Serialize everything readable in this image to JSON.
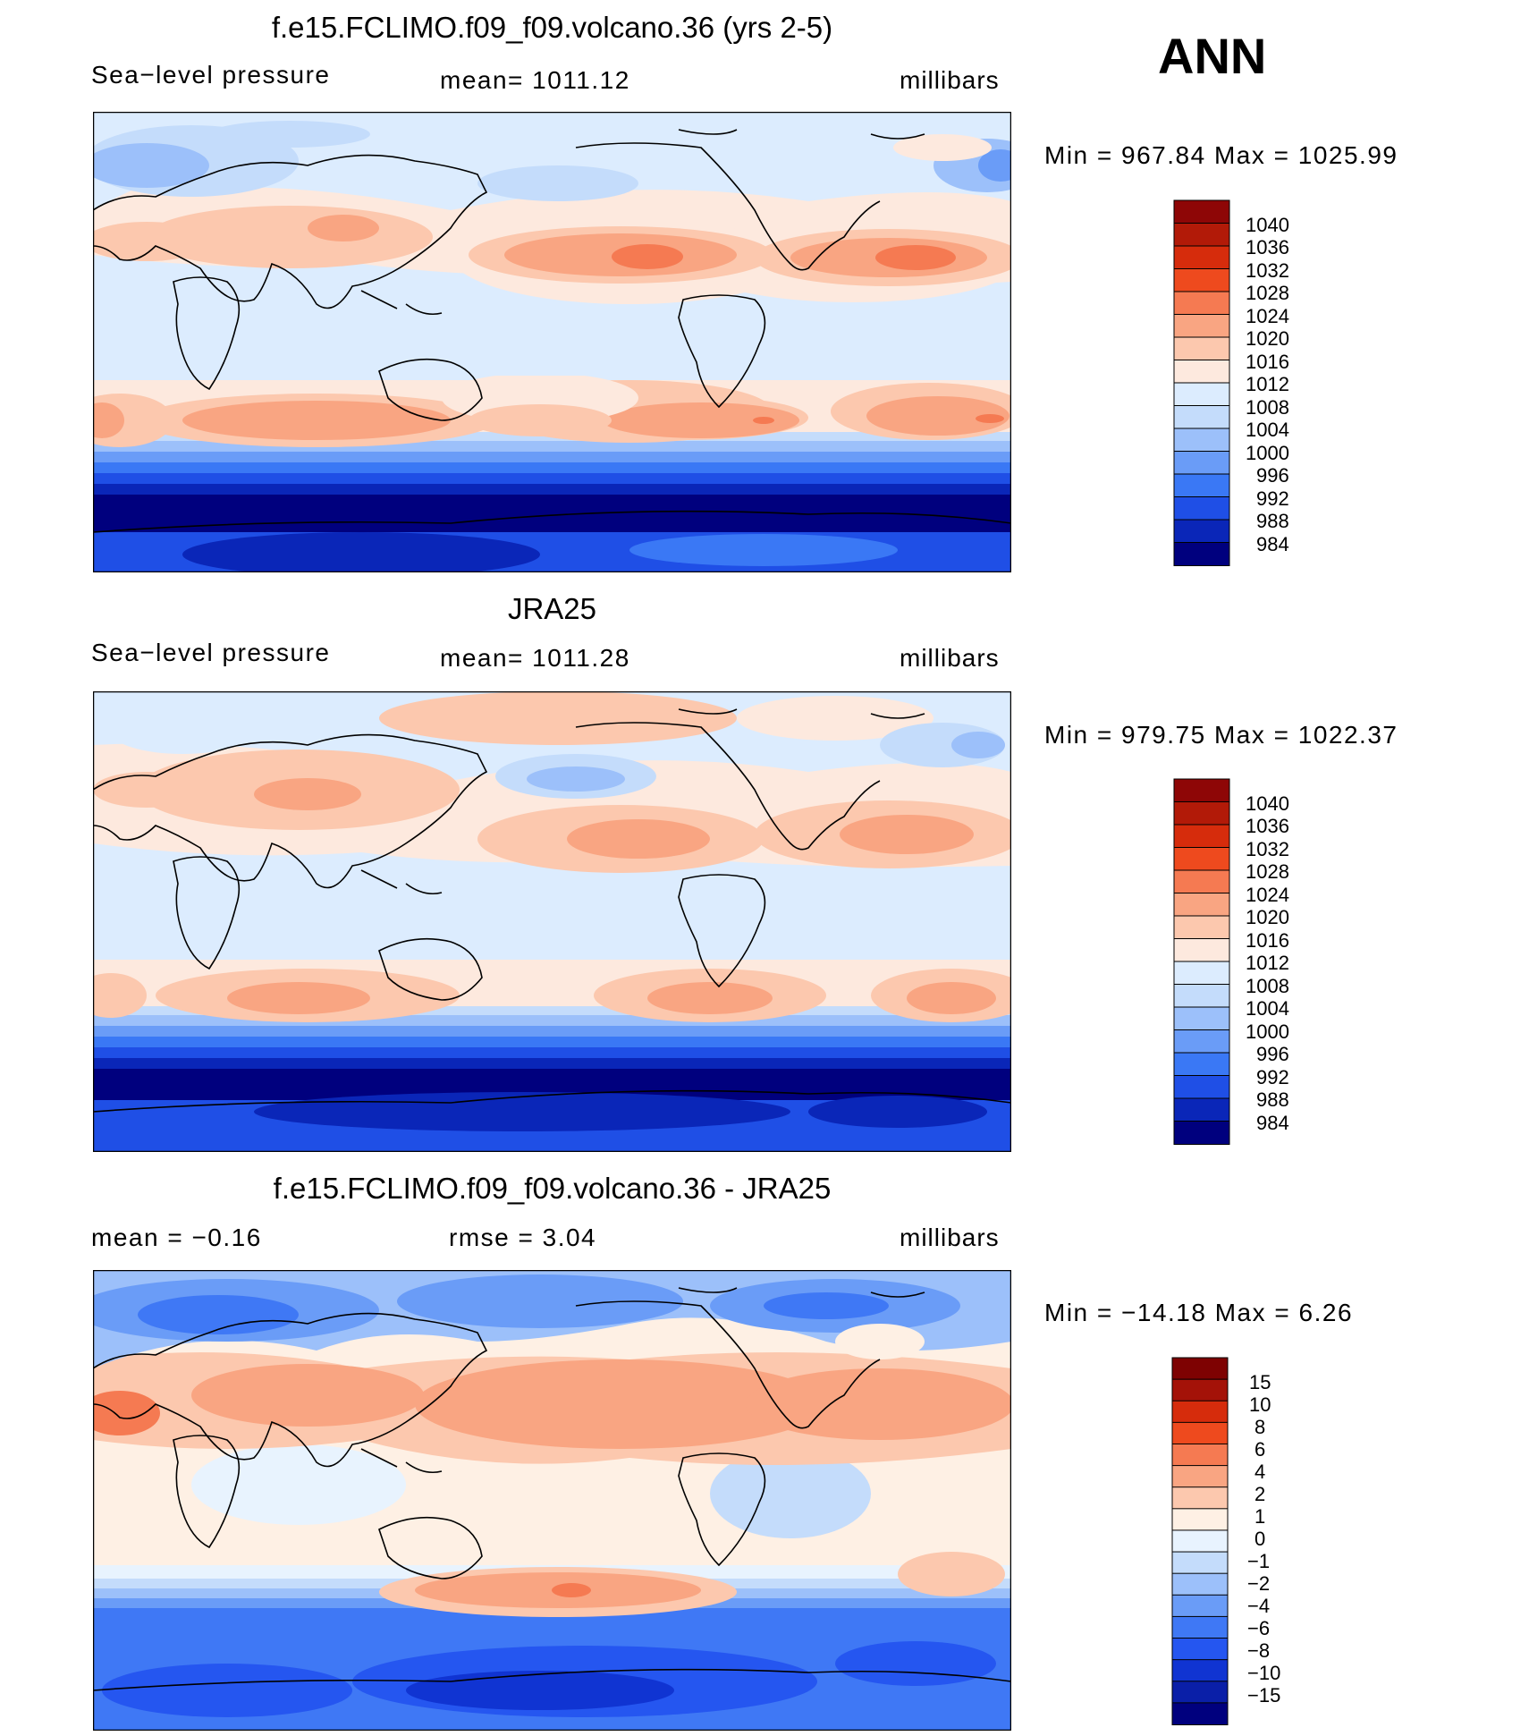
{
  "season": "ANN",
  "colors": {
    "slp": [
      "#00007e",
      "#0a26b8",
      "#1f4fe6",
      "#3a78f5",
      "#6a9cf7",
      "#9cc0fa",
      "#c4dcfb",
      "#dcecfe",
      "#fde9de",
      "#fcc8ae",
      "#f9a582",
      "#f57a52",
      "#ee4a1e",
      "#d62c0c",
      "#b21a08",
      "#8e0606"
    ],
    "diff": [
      "#00007e",
      "#0a1fa8",
      "#1034d2",
      "#2556f0",
      "#3f78f5",
      "#6a9cf7",
      "#9cc0fa",
      "#c4dcfb",
      "#e8f3fe",
      "#fef0e4",
      "#fcc8ae",
      "#f9a582",
      "#f57a52",
      "#ee4a1e",
      "#d62c0c",
      "#a41208",
      "#7e0202"
    ]
  },
  "panels": [
    {
      "title": "f.e15.FCLIMO.f09_f09.volcano.36 (yrs 2-5)",
      "left_label": "Sea−level pressure",
      "center_label": "mean=  1011.12",
      "units": "millibars",
      "minmax": "Min  =  967.84  Max  =  1025.99",
      "legend": [
        "1040",
        "1036",
        "1032",
        "1028",
        "1024",
        "1020",
        "1016",
        "1012",
        "1008",
        "1004",
        "1000",
        "996",
        "992",
        "988",
        "984"
      ]
    },
    {
      "title": "JRA25",
      "left_label": "Sea−level pressure",
      "center_label": "mean=  1011.28",
      "units": "millibars",
      "minmax": "Min  =  979.75  Max  =  1022.37",
      "legend": [
        "1040",
        "1036",
        "1032",
        "1028",
        "1024",
        "1020",
        "1016",
        "1012",
        "1008",
        "1004",
        "1000",
        "996",
        "992",
        "988",
        "984"
      ]
    },
    {
      "title": "f.e15.FCLIMO.f09_f09.volcano.36 - JRA25",
      "left_label": "mean  =     −0.16",
      "center_label": "rmse  =      3.04",
      "units": "millibars",
      "minmax": "Min  =  −14.18  Max  =      6.26",
      "legend": [
        "15",
        "10",
        "8",
        "6",
        "4",
        "2",
        "1",
        "0",
        "−1",
        "−2",
        "−4",
        "−6",
        "−8",
        "−10",
        "−15"
      ]
    }
  ]
}
